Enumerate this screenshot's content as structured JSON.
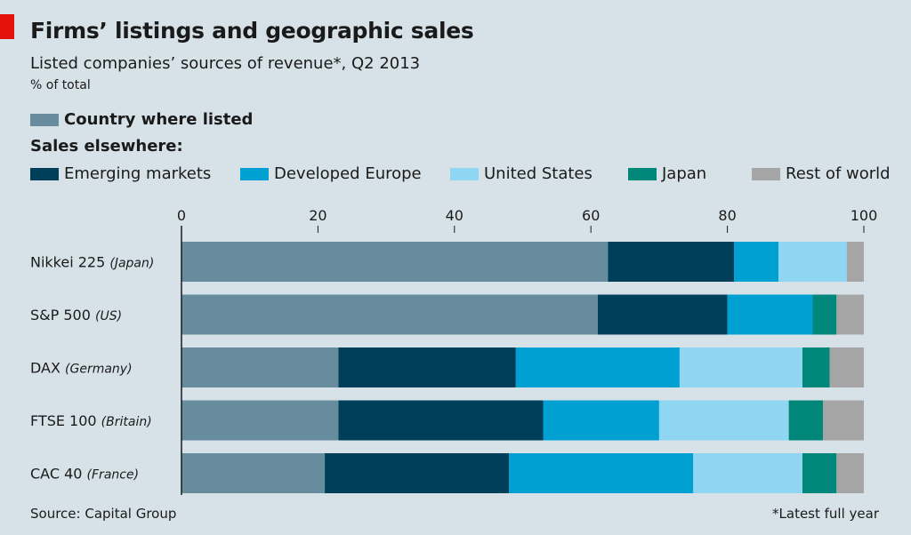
{
  "title": "Firms’ listings and geographic sales",
  "subtitle": "Listed companies’ sources of revenue*, Q2 2013",
  "unit_label": "% of total",
  "legend_country_label": "Country where listed",
  "legend_else_title": "Sales elsewhere:",
  "source": "Source: Capital Group",
  "footnote": "*Latest full year",
  "colors": {
    "country": "#678c9e",
    "emerging": "#003f5a",
    "europe": "#00a0d2",
    "us": "#8fd6f2",
    "japan": "#00877a",
    "rest": "#a5a5a5",
    "red_tab": "#e3120b"
  },
  "chart_data": {
    "type": "bar",
    "orientation": "horizontal",
    "stacked": true,
    "xlim": [
      0,
      100
    ],
    "xticks": [
      0,
      20,
      40,
      60,
      80,
      100
    ],
    "grid": false,
    "legend": "top",
    "categories": [
      {
        "name": "Nikkei 225",
        "country": "(Japan)"
      },
      {
        "name": "S&P 500",
        "country": "(US)"
      },
      {
        "name": "DAX",
        "country": "(Germany)"
      },
      {
        "name": "FTSE 100",
        "country": "(Britain)"
      },
      {
        "name": "CAC 40",
        "country": "(France)"
      }
    ],
    "series": [
      {
        "key": "country",
        "name": "Country where listed",
        "values": [
          62.5,
          61,
          23,
          23,
          21
        ]
      },
      {
        "key": "emerging",
        "name": "Emerging markets",
        "values": [
          18.5,
          19,
          26,
          30,
          27
        ]
      },
      {
        "key": "europe",
        "name": "Developed Europe",
        "values": [
          6.5,
          12.5,
          24,
          17,
          27
        ]
      },
      {
        "key": "us",
        "name": "United States",
        "values": [
          10,
          0,
          18,
          19,
          16
        ]
      },
      {
        "key": "japan",
        "name": "Japan",
        "values": [
          0,
          3.5,
          4,
          5,
          5
        ]
      },
      {
        "key": "rest",
        "name": "Rest of world",
        "values": [
          2.5,
          4,
          5,
          6,
          4
        ]
      }
    ]
  }
}
